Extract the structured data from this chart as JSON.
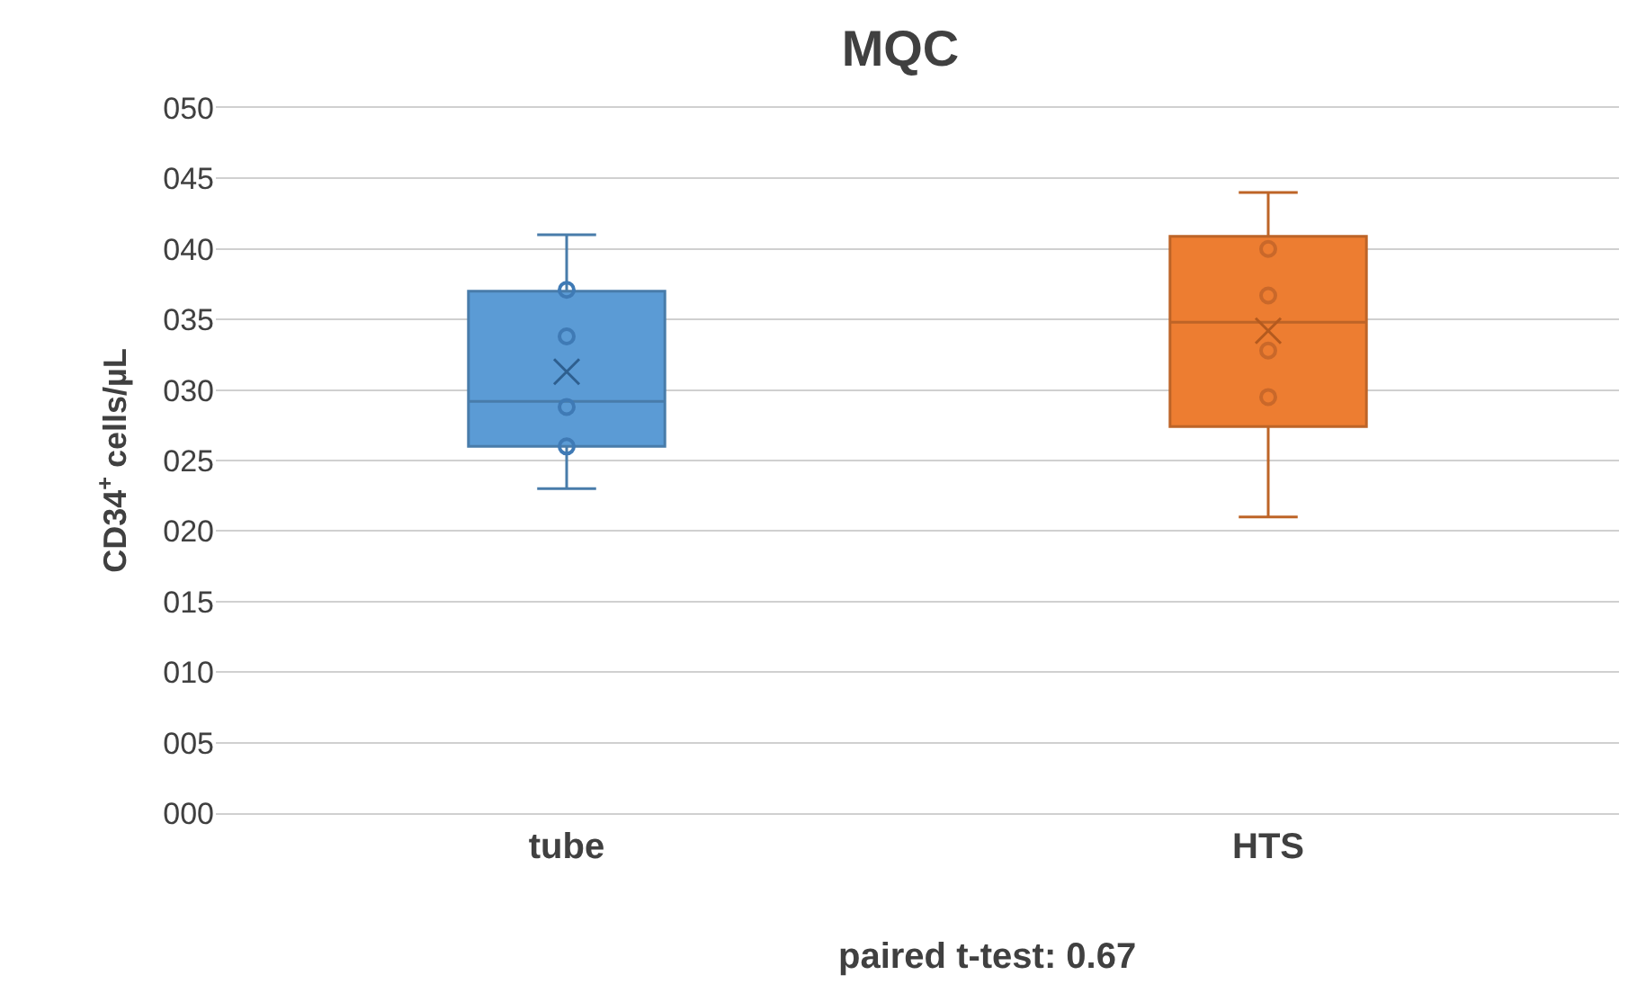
{
  "chart_data": {
    "type": "box",
    "title": "MQC",
    "ylabel": "CD34$^{+}$ cells/µL",
    "categories": [
      "tube",
      "HTS"
    ],
    "series": [
      {
        "type": "box",
        "colors": [
          "#5b9bd5",
          "#ed7d31"
        ],
        "boxes": [
          {
            "low": 23.0,
            "q1": 26.0,
            "median": 29.2,
            "q3": 37.0,
            "high": 41.0,
            "mean": 31.3
          },
          {
            "low": 21.0,
            "q1": 27.4,
            "median": 34.8,
            "q3": 40.9,
            "high": 44.0,
            "mean": 34.2
          }
        ]
      },
      {
        "type": "scatter",
        "x": [
          "tube",
          "tube",
          "tube",
          "tube"
        ],
        "values": [
          37.1,
          33.8,
          28.8,
          26.0
        ],
        "color": "#3f7ab5",
        "marker": "circle"
      },
      {
        "type": "scatter",
        "x": [
          "HTS",
          "HTS",
          "HTS",
          "HTS"
        ],
        "values": [
          40.0,
          36.7,
          32.8,
          29.5
        ],
        "color": "#c9682a",
        "marker": "circle"
      }
    ],
    "ylim": [
      0,
      50
    ],
    "yticks": [
      {
        "value": 0,
        "label": "000"
      },
      {
        "value": 5,
        "label": "005"
      },
      {
        "value": 10,
        "label": "010"
      },
      {
        "value": 15,
        "label": "015"
      },
      {
        "value": 20,
        "label": "020"
      },
      {
        "value": 25,
        "label": "025"
      },
      {
        "value": 30,
        "label": "030"
      },
      {
        "value": 35,
        "label": "035"
      },
      {
        "value": 40,
        "label": "040"
      },
      {
        "value": 45,
        "label": "045"
      },
      {
        "value": 50,
        "label": "050"
      }
    ],
    "grid": "y",
    "annotations": [
      "paired t-test: 0.67"
    ]
  }
}
